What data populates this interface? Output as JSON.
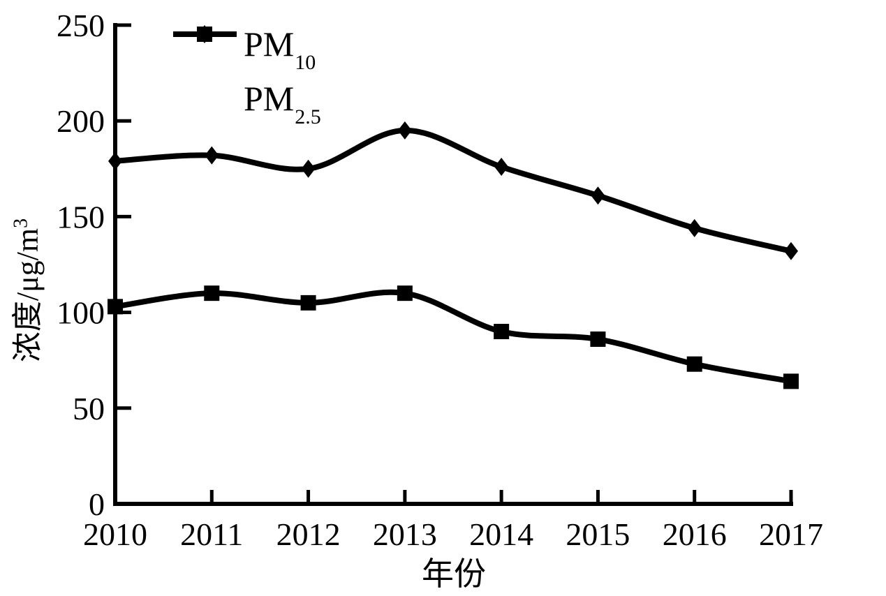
{
  "figure": {
    "background": "#ffffff",
    "ink_color": "#000000"
  },
  "chart_data": {
    "type": "line",
    "title": "",
    "xlabel": "年份",
    "ylabel": "浓度/μg/m³",
    "ylabel_main": "浓度/μg/m",
    "ylabel_sup": "3",
    "x": [
      2010,
      2011,
      2012,
      2013,
      2014,
      2015,
      2016,
      2017
    ],
    "series": [
      {
        "id": "pm10",
        "name": "PM10",
        "label_main": "PM",
        "label_sub": "10",
        "marker": "diamond",
        "color": "#000000",
        "values": [
          179,
          182,
          175,
          195,
          176,
          161,
          144,
          132
        ]
      },
      {
        "id": "pm25",
        "name": "PM2.5",
        "label_main": "PM",
        "label_sub": "2.5",
        "marker": "square",
        "color": "#000000",
        "values": [
          103,
          110,
          105,
          110,
          90,
          86,
          73,
          64
        ]
      }
    ],
    "ylim": [
      0,
      250
    ],
    "yticks": [
      0,
      50,
      100,
      150,
      200,
      250
    ],
    "grid": false,
    "legend_position": "top-left-inside",
    "line_style": "smooth"
  }
}
